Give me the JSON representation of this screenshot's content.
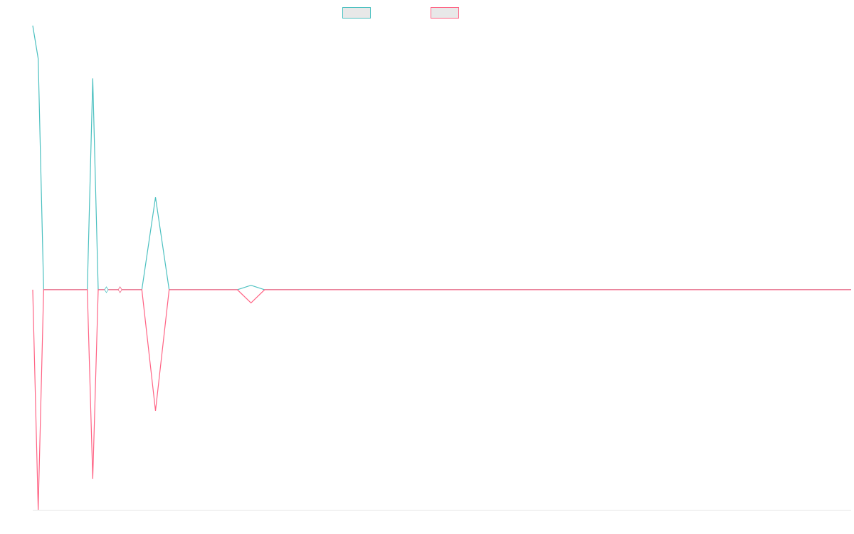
{
  "chart_data": {
    "type": "line",
    "title": "",
    "xlabel": "",
    "ylabel": "",
    "x": [
      0,
      2,
      4,
      6,
      8,
      10,
      12,
      14,
      15,
      16,
      18,
      20,
      22,
      24,
      25,
      26,
      28,
      30,
      32,
      34,
      36,
      38,
      40,
      45,
      50,
      55,
      60,
      65,
      70,
      75,
      80,
      85,
      90,
      95,
      100,
      105,
      110,
      115,
      120,
      125,
      130,
      135,
      140,
      145,
      150,
      155,
      160,
      165,
      170,
      175,
      180,
      185,
      190,
      195,
      200,
      205,
      210,
      215,
      220,
      225,
      230,
      235,
      240,
      245,
      250,
      255,
      260,
      265,
      270,
      275,
      280,
      285,
      290,
      295,
      300
    ],
    "xlim": [
      0,
      300
    ],
    "ylim": [
      -100,
      120
    ],
    "grid": false,
    "legend_position": "top-center",
    "series": [
      {
        "color": "#4bc0c0",
        "values": [
          120,
          105,
          0,
          0,
          0,
          0,
          0,
          0,
          0,
          0,
          0,
          0,
          96,
          0,
          0,
          0,
          0,
          0,
          0,
          0,
          0,
          0,
          0,
          42,
          0,
          0,
          0,
          0,
          0,
          0,
          2,
          0,
          0,
          0,
          0,
          0,
          0,
          0,
          0,
          0,
          0,
          0,
          0,
          0,
          0,
          0,
          0,
          0,
          0,
          0,
          0,
          0,
          0,
          0,
          0,
          0,
          0,
          0,
          0,
          0,
          0,
          0,
          0,
          0,
          0,
          0,
          0,
          0,
          0,
          0,
          0,
          0,
          0,
          0,
          0
        ]
      },
      {
        "color": "#ff6384",
        "values": [
          0,
          -100,
          0,
          0,
          0,
          0,
          0,
          0,
          0,
          0,
          0,
          0,
          -86,
          0,
          0,
          0,
          0,
          0,
          0,
          0,
          0,
          0,
          0,
          -55,
          0,
          0,
          0,
          0,
          0,
          0,
          -6,
          0,
          0,
          0,
          0,
          0,
          0,
          0,
          0,
          0,
          0,
          0,
          0,
          0,
          0,
          0,
          0,
          0,
          0,
          0,
          0,
          0,
          0,
          0,
          0,
          0,
          0,
          0,
          0,
          0,
          0,
          0,
          0,
          0,
          0,
          0,
          0,
          0,
          0,
          0,
          0,
          0,
          0,
          0,
          0
        ]
      }
    ],
    "markers": [
      {
        "x": 27,
        "y": 0,
        "color": "#4bc0c0"
      },
      {
        "x": 32,
        "y": 0,
        "color": "#4bc0c0"
      },
      {
        "x": 32,
        "y": 0,
        "color": "#ff6384"
      }
    ]
  }
}
